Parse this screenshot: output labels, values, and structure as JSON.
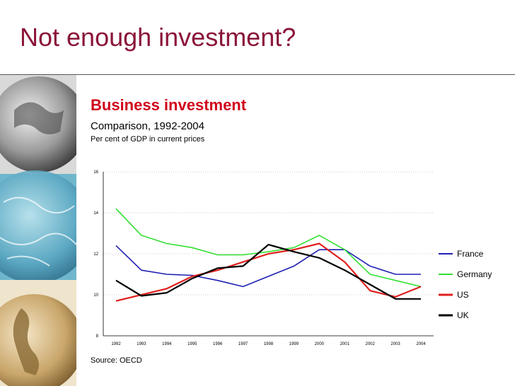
{
  "slide": {
    "title": "Not enough investment?"
  },
  "chart_data": {
    "type": "line",
    "title": "Business investment",
    "subtitle": "Comparison, 1992-2004",
    "ylabel": "Per cent of GDP in current prices",
    "source": "Source: OECD",
    "x": [
      "1992",
      "1993",
      "1994",
      "1995",
      "1996",
      "1997",
      "1998",
      "1999",
      "2000",
      "2001",
      "2002",
      "2003",
      "2004"
    ],
    "ylim": [
      8,
      16
    ],
    "yticks": [
      "16",
      "14",
      "12",
      "10",
      "8"
    ],
    "grid": "horizontal dotted",
    "legend_position": "right",
    "series": [
      {
        "name": "France",
        "color": "#1f1fb4",
        "values": [
          12.4,
          11.2,
          11.0,
          10.95,
          10.7,
          10.4,
          10.9,
          11.4,
          12.2,
          12.2,
          11.4,
          11.0,
          11.0
        ]
      },
      {
        "name": "Germany",
        "color": "#33e033",
        "values": [
          14.2,
          12.9,
          12.5,
          12.3,
          11.95,
          11.95,
          12.1,
          12.3,
          12.9,
          12.2,
          11.0,
          10.7,
          10.4
        ]
      },
      {
        "name": "US",
        "color": "#e0201e",
        "values": [
          9.7,
          10.0,
          10.3,
          10.9,
          11.2,
          11.6,
          12.0,
          12.2,
          12.5,
          11.6,
          10.2,
          9.9,
          10.4
        ]
      },
      {
        "name": "UK",
        "color": "#000000",
        "values": [
          10.7,
          9.95,
          10.1,
          10.8,
          11.3,
          11.4,
          12.45,
          12.1,
          11.8,
          11.2,
          10.5,
          9.8,
          9.8
        ]
      }
    ]
  }
}
